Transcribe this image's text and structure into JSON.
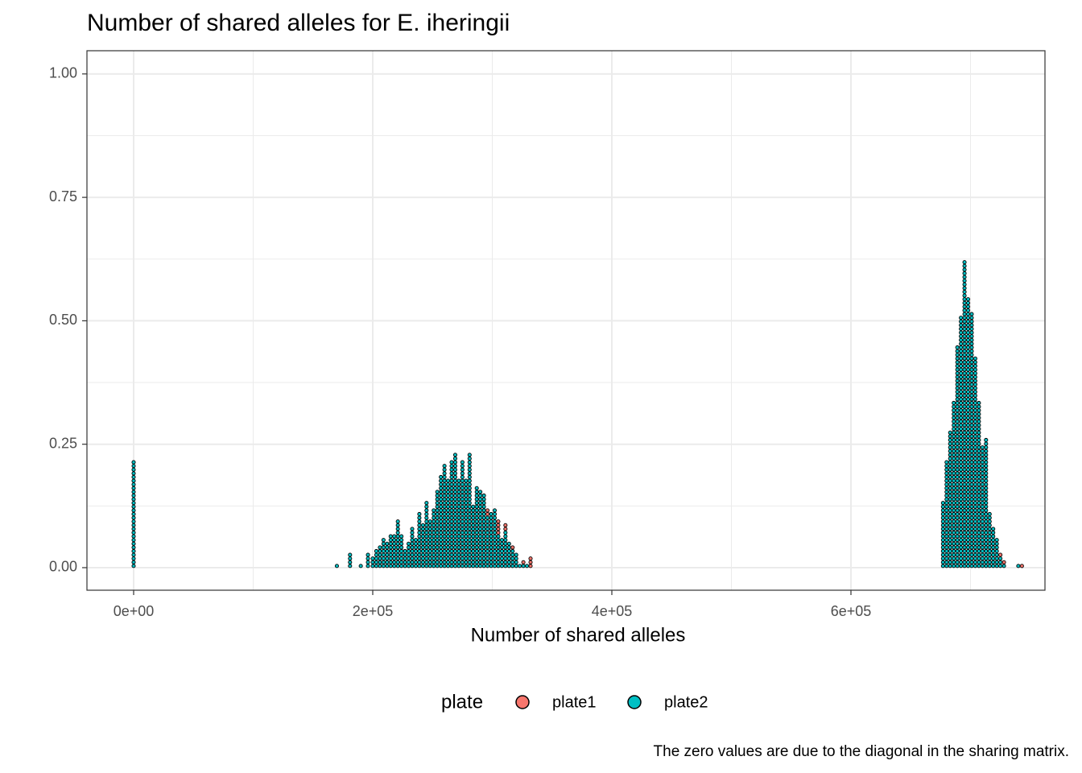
{
  "chart_data": {
    "type": "dotplot",
    "title": "Number of shared alleles for E. iheringii",
    "x_label": "Number of shared alleles",
    "caption": "The zero values are due to the diagonal in the sharing matrix.",
    "legend_title": "plate",
    "legend_position": "bottom",
    "grid": true,
    "xlim": [
      -39057,
      762290
    ],
    "ylim": [
      -0.0457,
      1.047
    ],
    "xticks": [
      {
        "value": 0,
        "label": "0e+00"
      },
      {
        "value": 200000,
        "label": "2e+05"
      },
      {
        "value": 400000,
        "label": "4e+05"
      },
      {
        "value": 600000,
        "label": "6e+05"
      }
    ],
    "yticks": [
      {
        "value": 0,
        "label": "0.00"
      },
      {
        "value": 0.25,
        "label": "0.25"
      },
      {
        "value": 0.5,
        "label": "0.50"
      },
      {
        "value": 0.75,
        "label": "0.75"
      },
      {
        "value": 1,
        "label": "1.00"
      }
    ],
    "x_minor_grid": [
      100000,
      300000,
      500000,
      700000
    ],
    "y_minor_grid": [
      0.125,
      0.375,
      0.625,
      0.875
    ],
    "series": [
      {
        "name": "plate2",
        "color": "#00bfc4",
        "x": [
          0,
          170000,
          181000,
          190000,
          196000,
          200000,
          203000,
          206000,
          209000,
          212000,
          215000,
          218000,
          221000,
          224000,
          227000,
          230000,
          233000,
          236000,
          239000,
          242000,
          245000,
          248000,
          251000,
          254000,
          257000,
          260000,
          263000,
          266000,
          269000,
          272000,
          275000,
          278000,
          281000,
          284000,
          287000,
          290000,
          293000,
          296000,
          299000,
          302000,
          305000,
          308000,
          311000,
          314000,
          317000,
          320000,
          323000,
          326000,
          329000,
          677000,
          680000,
          683000,
          686000,
          689000,
          692000,
          695000,
          698000,
          701000,
          704000,
          707000,
          710000,
          713000,
          716000,
          719000,
          722000,
          725000,
          728000,
          740000
        ],
        "values": [
          0.22,
          0.005,
          0.027,
          0.005,
          0.027,
          0.02,
          0.04,
          0.045,
          0.06,
          0.055,
          0.065,
          0.065,
          0.1,
          0.065,
          0.04,
          0.055,
          0.08,
          0.06,
          0.11,
          0.09,
          0.135,
          0.1,
          0.12,
          0.16,
          0.19,
          0.21,
          0.18,
          0.22,
          0.235,
          0.18,
          0.22,
          0.18,
          0.235,
          0.13,
          0.165,
          0.16,
          0.15,
          0.105,
          0.11,
          0.12,
          0.07,
          0.06,
          0.075,
          0.05,
          0.035,
          0.03,
          0.01,
          0.005,
          0.005,
          0.135,
          0.22,
          0.275,
          0.34,
          0.45,
          0.51,
          0.62,
          0.55,
          0.52,
          0.43,
          0.34,
          0.25,
          0.26,
          0.11,
          0.08,
          0.06,
          0.02,
          0.01,
          0.005
        ]
      },
      {
        "name": "plate1",
        "color": "#f8766d",
        "x": [
          296000,
          305000,
          311000,
          317000,
          326000,
          332000,
          725000,
          728000,
          743000
        ],
        "values": [
          0.015,
          0.03,
          0.015,
          0.01,
          0.005,
          0.02,
          0.01,
          0.005,
          0.005
        ]
      }
    ]
  }
}
